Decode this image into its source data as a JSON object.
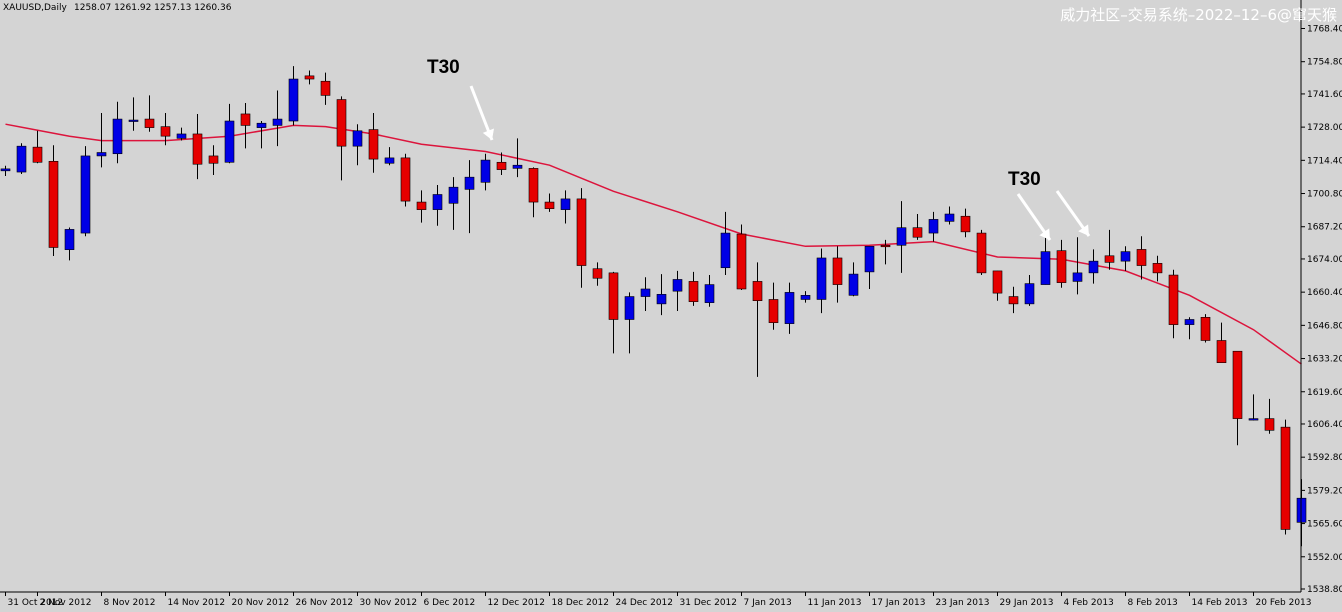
{
  "header": {
    "symbol": "XAUUSD,Daily",
    "ohlc": "1258.07 1261.92 1257.13 1260.36"
  },
  "watermark": "威力社区–交易系统–2022–12–6@窜天猴",
  "colors": {
    "background": "#d4d4d4",
    "bull": "#0000e6",
    "bear": "#e60000",
    "ma": "#dc143c",
    "wick": "#000000",
    "arrow": "#ffffff"
  },
  "annotations": [
    {
      "text": "T30",
      "arrows": 1
    },
    {
      "text": "T30",
      "arrows": 2
    }
  ],
  "chart_data": {
    "type": "candlestick",
    "title": "",
    "grid": false,
    "ylim": [
      1538.8,
      1776.0
    ],
    "y_ticks": [
      "1768.40",
      "1754.80",
      "1741.60",
      "1728.00",
      "1714.40",
      "1700.80",
      "1687.20",
      "1674.00",
      "1660.40",
      "1646.80",
      "1633.20",
      "1619.60",
      "1606.40",
      "1592.80",
      "1579.20",
      "1565.60",
      "1552.00",
      "1538.80"
    ],
    "x_ticks": [
      {
        "label": "31 Oct 2012",
        "i": 0
      },
      {
        "label": "2 Nov 2012",
        "i": 2
      },
      {
        "label": "8 Nov 2012",
        "i": 6
      },
      {
        "label": "14 Nov 2012",
        "i": 10
      },
      {
        "label": "20 Nov 2012",
        "i": 14
      },
      {
        "label": "26 Nov 2012",
        "i": 18
      },
      {
        "label": "30 Nov 2012",
        "i": 22
      },
      {
        "label": "6 Dec 2012",
        "i": 26
      },
      {
        "label": "12 Dec 2012",
        "i": 30
      },
      {
        "label": "18 Dec 2012",
        "i": 34
      },
      {
        "label": "24 Dec 2012",
        "i": 38
      },
      {
        "label": "31 Dec 2012",
        "i": 42
      },
      {
        "label": "7 Jan 2013",
        "i": 46
      },
      {
        "label": "11 Jan 2013",
        "i": 50
      },
      {
        "label": "17 Jan 2013",
        "i": 54
      },
      {
        "label": "23 Jan 2013",
        "i": 58
      },
      {
        "label": "29 Jan 2013",
        "i": 62
      },
      {
        "label": "4 Feb 2013",
        "i": 66
      },
      {
        "label": "8 Feb 2013",
        "i": 70
      },
      {
        "label": "14 Feb 2013",
        "i": 74
      },
      {
        "label": "20 Feb 2013",
        "i": 78
      }
    ],
    "candles": [
      {
        "o": 1710.1,
        "h": 1712.2,
        "l": 1708.0,
        "c": 1710.9
      },
      {
        "o": 1709.6,
        "h": 1721.4,
        "l": 1708.8,
        "c": 1720.2
      },
      {
        "o": 1719.8,
        "h": 1726.5,
        "l": 1713.2,
        "c": 1713.6
      },
      {
        "o": 1714.0,
        "h": 1720.6,
        "l": 1675.2,
        "c": 1678.7
      },
      {
        "o": 1677.8,
        "h": 1686.9,
        "l": 1673.4,
        "c": 1686.1
      },
      {
        "o": 1684.6,
        "h": 1720.2,
        "l": 1683.3,
        "c": 1716.2
      },
      {
        "o": 1716.2,
        "h": 1733.8,
        "l": 1711.5,
        "c": 1717.6
      },
      {
        "o": 1717.1,
        "h": 1738.4,
        "l": 1713.2,
        "c": 1731.3
      },
      {
        "o": 1730.9,
        "h": 1740.2,
        "l": 1726.5,
        "c": 1730.9
      },
      {
        "o": 1731.3,
        "h": 1741.0,
        "l": 1726.1,
        "c": 1727.8
      },
      {
        "o": 1728.2,
        "h": 1733.8,
        "l": 1720.6,
        "c": 1724.3
      },
      {
        "o": 1723.4,
        "h": 1727.8,
        "l": 1722.5,
        "c": 1725.2
      },
      {
        "o": 1725.2,
        "h": 1733.4,
        "l": 1706.7,
        "c": 1712.8
      },
      {
        "o": 1716.2,
        "h": 1720.6,
        "l": 1708.4,
        "c": 1713.2
      },
      {
        "o": 1713.6,
        "h": 1737.5,
        "l": 1713.2,
        "c": 1730.5
      },
      {
        "o": 1733.4,
        "h": 1737.9,
        "l": 1719.3,
        "c": 1728.7
      },
      {
        "o": 1727.8,
        "h": 1730.5,
        "l": 1719.3,
        "c": 1729.6
      },
      {
        "o": 1728.7,
        "h": 1743.0,
        "l": 1720.2,
        "c": 1731.3
      },
      {
        "o": 1730.5,
        "h": 1753.0,
        "l": 1728.7,
        "c": 1747.7
      },
      {
        "o": 1749.0,
        "h": 1751.2,
        "l": 1745.5,
        "c": 1747.7
      },
      {
        "o": 1746.8,
        "h": 1750.3,
        "l": 1737.1,
        "c": 1741.0
      },
      {
        "o": 1739.3,
        "h": 1740.6,
        "l": 1706.2,
        "c": 1720.2
      },
      {
        "o": 1720.2,
        "h": 1729.2,
        "l": 1712.4,
        "c": 1726.5
      },
      {
        "o": 1727.0,
        "h": 1733.8,
        "l": 1709.3,
        "c": 1714.9
      },
      {
        "o": 1713.2,
        "h": 1719.8,
        "l": 1712.4,
        "c": 1715.4
      },
      {
        "o": 1715.4,
        "h": 1717.1,
        "l": 1695.5,
        "c": 1697.7
      },
      {
        "o": 1697.3,
        "h": 1702.1,
        "l": 1688.9,
        "c": 1694.2
      },
      {
        "o": 1694.2,
        "h": 1704.3,
        "l": 1687.6,
        "c": 1700.4
      },
      {
        "o": 1696.8,
        "h": 1707.5,
        "l": 1685.9,
        "c": 1703.4
      },
      {
        "o": 1702.5,
        "h": 1714.5,
        "l": 1684.6,
        "c": 1707.5
      },
      {
        "o": 1705.4,
        "h": 1717.1,
        "l": 1702.1,
        "c": 1714.5
      },
      {
        "o": 1713.6,
        "h": 1717.6,
        "l": 1708.4,
        "c": 1710.6
      },
      {
        "o": 1711.1,
        "h": 1723.4,
        "l": 1707.5,
        "c": 1712.4
      },
      {
        "o": 1711.1,
        "h": 1711.5,
        "l": 1691.1,
        "c": 1697.3
      },
      {
        "o": 1697.3,
        "h": 1700.8,
        "l": 1693.3,
        "c": 1694.6
      },
      {
        "o": 1694.2,
        "h": 1702.1,
        "l": 1688.5,
        "c": 1698.6
      },
      {
        "o": 1698.6,
        "h": 1703.0,
        "l": 1662.2,
        "c": 1671.3
      },
      {
        "o": 1670.0,
        "h": 1672.6,
        "l": 1663.0,
        "c": 1666.1
      },
      {
        "o": 1668.3,
        "h": 1668.7,
        "l": 1635.3,
        "c": 1649.2
      },
      {
        "o": 1649.2,
        "h": 1660.3,
        "l": 1635.3,
        "c": 1658.6
      },
      {
        "o": 1658.6,
        "h": 1666.5,
        "l": 1652.7,
        "c": 1661.7
      },
      {
        "o": 1655.6,
        "h": 1667.8,
        "l": 1651.0,
        "c": 1659.5
      },
      {
        "o": 1660.8,
        "h": 1669.1,
        "l": 1652.7,
        "c": 1665.6
      },
      {
        "o": 1664.8,
        "h": 1668.7,
        "l": 1654.8,
        "c": 1656.5
      },
      {
        "o": 1656.1,
        "h": 1667.4,
        "l": 1654.4,
        "c": 1663.5
      },
      {
        "o": 1670.4,
        "h": 1693.3,
        "l": 1667.4,
        "c": 1684.6
      },
      {
        "o": 1684.2,
        "h": 1688.1,
        "l": 1661.3,
        "c": 1661.7
      },
      {
        "o": 1664.8,
        "h": 1672.6,
        "l": 1625.7,
        "c": 1656.9
      },
      {
        "o": 1657.4,
        "h": 1664.3,
        "l": 1645.0,
        "c": 1647.9
      },
      {
        "o": 1647.5,
        "h": 1664.3,
        "l": 1643.3,
        "c": 1660.3
      },
      {
        "o": 1657.4,
        "h": 1660.8,
        "l": 1656.1,
        "c": 1659.1
      },
      {
        "o": 1657.4,
        "h": 1678.3,
        "l": 1651.8,
        "c": 1674.4
      },
      {
        "o": 1674.4,
        "h": 1679.2,
        "l": 1656.1,
        "c": 1663.5
      },
      {
        "o": 1659.1,
        "h": 1672.6,
        "l": 1658.7,
        "c": 1667.8
      },
      {
        "o": 1668.7,
        "h": 1678.3,
        "l": 1661.7,
        "c": 1679.2
      },
      {
        "o": 1679.6,
        "h": 1681.8,
        "l": 1671.8,
        "c": 1679.2
      },
      {
        "o": 1679.6,
        "h": 1697.7,
        "l": 1668.3,
        "c": 1686.8
      },
      {
        "o": 1686.8,
        "h": 1692.4,
        "l": 1681.8,
        "c": 1682.9
      },
      {
        "o": 1684.6,
        "h": 1693.3,
        "l": 1681.1,
        "c": 1690.2
      },
      {
        "o": 1689.4,
        "h": 1695.5,
        "l": 1688.1,
        "c": 1692.4
      },
      {
        "o": 1691.5,
        "h": 1694.6,
        "l": 1682.9,
        "c": 1685.1
      },
      {
        "o": 1684.6,
        "h": 1685.9,
        "l": 1667.4,
        "c": 1668.3
      },
      {
        "o": 1669.1,
        "h": 1669.1,
        "l": 1656.9,
        "c": 1660.0
      },
      {
        "o": 1658.6,
        "h": 1662.6,
        "l": 1651.8,
        "c": 1655.6
      },
      {
        "o": 1655.6,
        "h": 1667.4,
        "l": 1654.8,
        "c": 1663.9
      },
      {
        "o": 1663.5,
        "h": 1684.6,
        "l": 1663.5,
        "c": 1677.0
      },
      {
        "o": 1677.4,
        "h": 1681.8,
        "l": 1662.2,
        "c": 1664.3
      },
      {
        "o": 1664.8,
        "h": 1682.9,
        "l": 1659.5,
        "c": 1668.3
      },
      {
        "o": 1668.3,
        "h": 1677.9,
        "l": 1663.9,
        "c": 1673.1
      },
      {
        "o": 1675.3,
        "h": 1685.9,
        "l": 1669.6,
        "c": 1672.6
      },
      {
        "o": 1673.1,
        "h": 1679.2,
        "l": 1669.1,
        "c": 1677.0
      },
      {
        "o": 1677.9,
        "h": 1683.3,
        "l": 1665.6,
        "c": 1671.3
      },
      {
        "o": 1672.2,
        "h": 1675.3,
        "l": 1664.8,
        "c": 1668.3
      },
      {
        "o": 1667.4,
        "h": 1669.6,
        "l": 1641.5,
        "c": 1647.1
      },
      {
        "o": 1647.1,
        "h": 1650.1,
        "l": 1641.1,
        "c": 1649.2
      },
      {
        "o": 1650.1,
        "h": 1651.4,
        "l": 1639.8,
        "c": 1640.6
      },
      {
        "o": 1640.6,
        "h": 1647.9,
        "l": 1631.5,
        "c": 1631.5
      },
      {
        "o": 1636.2,
        "h": 1636.2,
        "l": 1597.7,
        "c": 1608.6
      },
      {
        "o": 1608.6,
        "h": 1618.5,
        "l": 1607.8,
        "c": 1608.6
      },
      {
        "o": 1608.6,
        "h": 1616.7,
        "l": 1602.4,
        "c": 1603.8
      },
      {
        "o": 1605.1,
        "h": 1608.2,
        "l": 1561.1,
        "c": 1563.2
      },
      {
        "o": 1566.1,
        "h": 1583.8,
        "l": 1556.3,
        "c": 1576.0
      }
    ],
    "ma": [
      {
        "i": 0,
        "v": 1729.2
      },
      {
        "i": 4,
        "v": 1724.3
      },
      {
        "i": 6,
        "v": 1722.5
      },
      {
        "i": 10,
        "v": 1722.5
      },
      {
        "i": 14,
        "v": 1724.3
      },
      {
        "i": 18,
        "v": 1728.7
      },
      {
        "i": 20,
        "v": 1728.2
      },
      {
        "i": 23,
        "v": 1725.2
      },
      {
        "i": 26,
        "v": 1721.0
      },
      {
        "i": 30,
        "v": 1718.0
      },
      {
        "i": 34,
        "v": 1712.4
      },
      {
        "i": 38,
        "v": 1701.7
      },
      {
        "i": 42,
        "v": 1693.3
      },
      {
        "i": 46,
        "v": 1684.2
      },
      {
        "i": 50,
        "v": 1679.2
      },
      {
        "i": 54,
        "v": 1679.6
      },
      {
        "i": 58,
        "v": 1681.1
      },
      {
        "i": 62,
        "v": 1674.8
      },
      {
        "i": 66,
        "v": 1673.9
      },
      {
        "i": 70,
        "v": 1669.1
      },
      {
        "i": 74,
        "v": 1659.1
      },
      {
        "i": 78,
        "v": 1645.0
      },
      {
        "i": 81,
        "v": 1630.9
      }
    ]
  }
}
